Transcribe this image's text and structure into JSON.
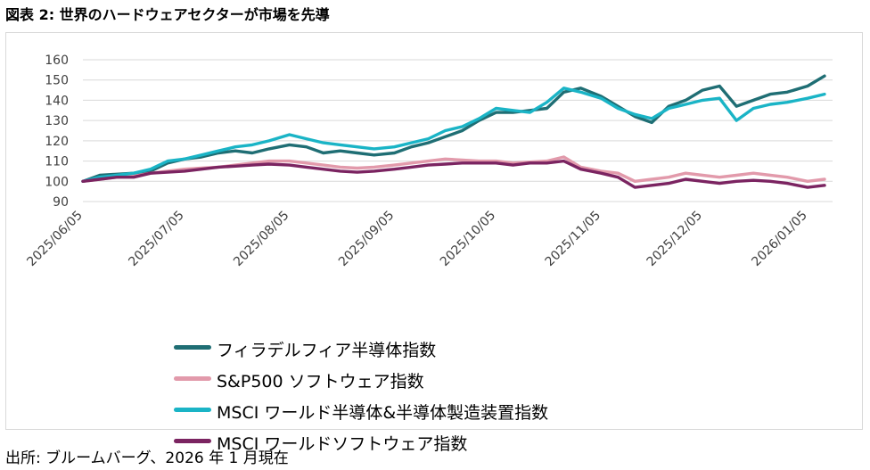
{
  "figure": {
    "title": "図表 2: 世界のハードウェアセクターが市場を先導",
    "source": "出所: ブルームバーグ、2026 年 1 月現在"
  },
  "chart_data": {
    "type": "line",
    "title": "",
    "xlabel": "",
    "ylabel": "",
    "x": [
      "2025/06/05",
      "2025/06/10",
      "2025/06/15",
      "2025/06/20",
      "2025/06/25",
      "2025/06/30",
      "2025/07/05",
      "2025/07/10",
      "2025/07/15",
      "2025/07/20",
      "2025/07/25",
      "2025/07/30",
      "2025/08/05",
      "2025/08/10",
      "2025/08/15",
      "2025/08/20",
      "2025/08/25",
      "2025/08/30",
      "2025/09/05",
      "2025/09/10",
      "2025/09/15",
      "2025/09/20",
      "2025/09/25",
      "2025/09/30",
      "2025/10/05",
      "2025/10/10",
      "2025/10/15",
      "2025/10/20",
      "2025/10/25",
      "2025/10/30",
      "2025/11/05",
      "2025/11/10",
      "2025/11/15",
      "2025/11/20",
      "2025/11/25",
      "2025/11/30",
      "2025/12/05",
      "2025/12/10",
      "2025/12/15",
      "2025/12/20",
      "2025/12/25",
      "2025/12/30",
      "2026/01/05",
      "2026/01/10"
    ],
    "x_ticks": [
      "2025/06/05",
      "2025/07/05",
      "2025/08/05",
      "2025/09/05",
      "2025/10/05",
      "2025/11/05",
      "2025/12/05",
      "2026/01/05"
    ],
    "ylim": [
      90,
      160
    ],
    "y_ticks": [
      90,
      100,
      110,
      120,
      130,
      140,
      150,
      160
    ],
    "grid": true,
    "legend_position": "bottom-left",
    "series": [
      {
        "name": "フィラデルフィア半導体指数",
        "color": "#1f6e74",
        "values": [
          100,
          103,
          103.5,
          104,
          105,
          109,
          111,
          112,
          114,
          115,
          114,
          116,
          118,
          117,
          114,
          115,
          114,
          113,
          114,
          117,
          119,
          122,
          125,
          130,
          134,
          134,
          135,
          136,
          144,
          146,
          142,
          137,
          132,
          129,
          137,
          140,
          145,
          147,
          137,
          140,
          143,
          144,
          147,
          152
        ]
      },
      {
        "name": "S&P500 ソフトウェア指数",
        "color": "#e29aab",
        "values": [
          100,
          101,
          102,
          102.5,
          104,
          105,
          106,
          106.5,
          107,
          108,
          109,
          110,
          110,
          109,
          108,
          107,
          106.5,
          107,
          108,
          109,
          110,
          111,
          110.5,
          110,
          110,
          109,
          109.5,
          110,
          112,
          107,
          105,
          104,
          100,
          101,
          102,
          104,
          103,
          102,
          103,
          104,
          103,
          102,
          100,
          101
        ]
      },
      {
        "name": "MSCI ワールド半導体&半導体製造装置指数",
        "color": "#1ab4c6",
        "values": [
          100,
          102,
          103,
          104,
          106,
          110,
          111,
          113,
          115,
          117,
          118,
          120,
          123,
          121,
          119,
          118,
          117,
          116,
          117,
          119,
          121,
          125,
          127,
          131,
          136,
          135,
          134,
          139,
          146,
          144,
          141,
          136,
          133,
          131,
          136,
          138,
          140,
          141,
          130,
          136,
          138,
          139,
          141,
          143
        ]
      },
      {
        "name": "MSCI ワールドソフトウェア指数",
        "color": "#7b2461",
        "values": [
          100,
          101,
          102,
          102,
          104,
          104.5,
          105,
          106,
          107,
          107.5,
          108,
          108.5,
          108,
          107,
          106,
          105,
          104.5,
          105,
          106,
          107,
          108,
          108.5,
          109,
          109,
          109,
          108,
          109,
          109,
          110,
          106,
          104,
          102,
          97,
          98,
          99,
          101,
          100,
          99,
          100,
          100.5,
          100,
          99,
          97,
          98
        ]
      }
    ]
  }
}
